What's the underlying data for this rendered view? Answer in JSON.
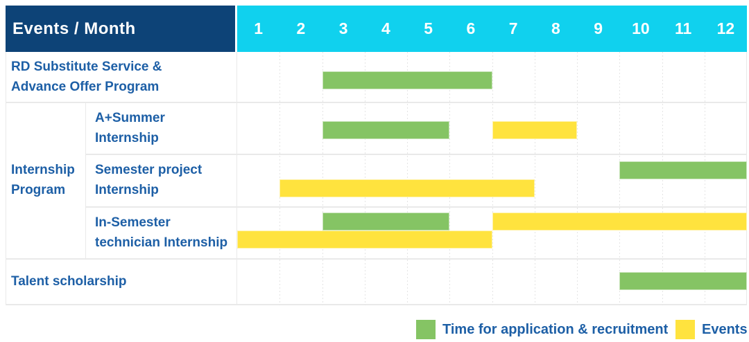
{
  "header": {
    "events_month_label": "Events / Month",
    "months": [
      "1",
      "2",
      "3",
      "4",
      "5",
      "6",
      "7",
      "8",
      "9",
      "10",
      "11",
      "12"
    ]
  },
  "labels": {
    "rd": "RD Substitute Service &\nAdvance Offer Program",
    "internship_group": "Internship\nProgram",
    "a_summer": "A+Summer\nInternship",
    "semester_project": "Semester project\nInternship",
    "in_semester": "In-Semester\ntechnician Internship",
    "talent": "Talent scholarship"
  },
  "chart_data": {
    "type": "gantt",
    "x_axis": {
      "label": "Month",
      "ticks": [
        1,
        2,
        3,
        4,
        5,
        6,
        7,
        8,
        9,
        10,
        11,
        12
      ]
    },
    "rows": [
      {
        "name": "RD Substitute Service & Advance Offer Program",
        "group": null,
        "bars": [
          {
            "kind": "application",
            "start": 3,
            "end": 6
          }
        ]
      },
      {
        "name": "A+Summer Internship",
        "group": "Internship Program",
        "bars": [
          {
            "kind": "application",
            "start": 3,
            "end": 5
          },
          {
            "kind": "event",
            "start": 7,
            "end": 8
          }
        ]
      },
      {
        "name": "Semester project Internship",
        "group": "Internship Program",
        "bars": [
          {
            "kind": "application",
            "start": 10,
            "end": 12,
            "lane": "top"
          },
          {
            "kind": "event",
            "start": 2,
            "end": 7,
            "lane": "bottom"
          }
        ]
      },
      {
        "name": "In-Semester technician Internship",
        "group": "Internship Program",
        "bars": [
          {
            "kind": "application",
            "start": 3,
            "end": 5,
            "lane": "top"
          },
          {
            "kind": "event",
            "start": 7,
            "end": 12,
            "lane": "top"
          },
          {
            "kind": "event",
            "start": 1,
            "end": 6,
            "lane": "bottom"
          }
        ]
      },
      {
        "name": "Talent scholarship",
        "group": null,
        "bars": [
          {
            "kind": "application",
            "start": 10,
            "end": 12
          }
        ]
      }
    ],
    "legend": [
      {
        "kind": "application",
        "label": "Time for application & recruitment"
      },
      {
        "kind": "event",
        "label": "Events"
      }
    ]
  },
  "colors": {
    "header_bg": "#0D4377",
    "months_bg": "#10D1EE",
    "header_text": "#FFFFFF",
    "label_text": "#1D5FA6",
    "application": "#85C464",
    "event": "#FFE33E",
    "grid_solid": "#E9E9E9",
    "grid_dash": "#E4E4E4"
  }
}
